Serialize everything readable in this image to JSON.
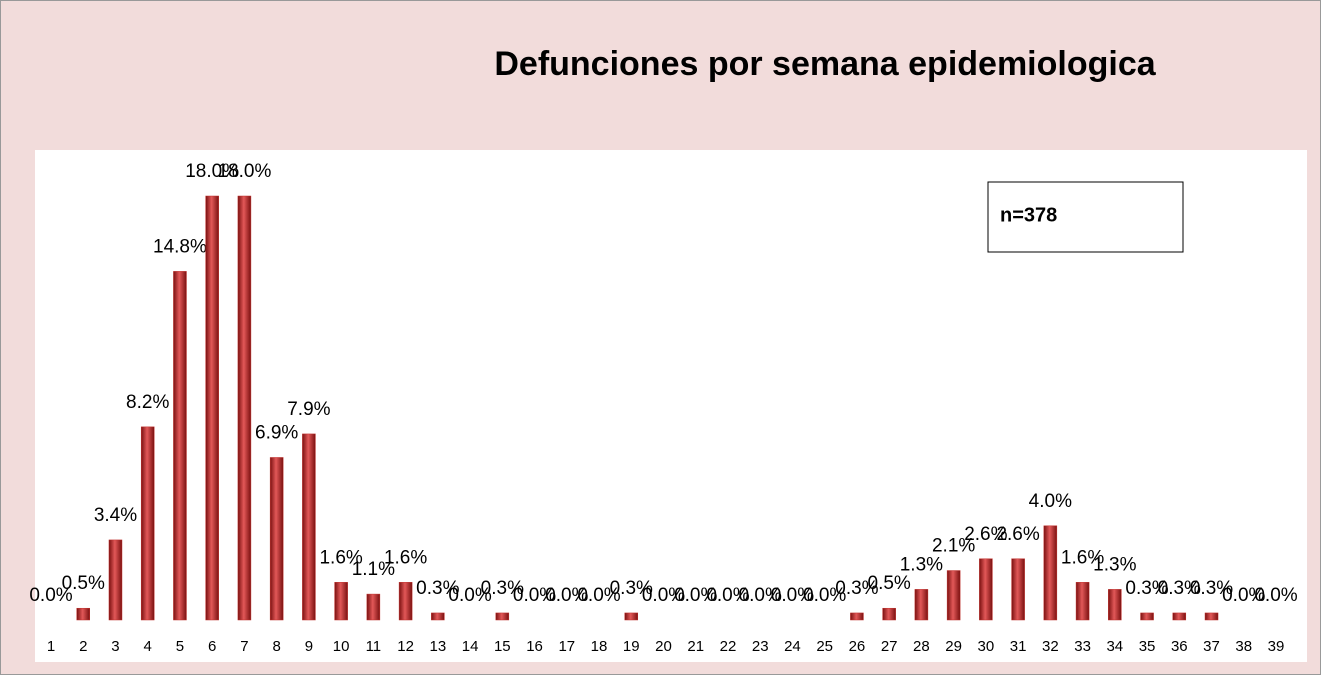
{
  "chart_data": {
    "type": "bar",
    "title": "Defunciones por semana epidemiologica",
    "annotation": "n=378",
    "categories": [
      "1",
      "2",
      "3",
      "4",
      "5",
      "6",
      "7",
      "8",
      "9",
      "10",
      "11",
      "12",
      "13",
      "14",
      "15",
      "16",
      "17",
      "18",
      "19",
      "20",
      "21",
      "22",
      "23",
      "24",
      "25",
      "26",
      "27",
      "28",
      "29",
      "30",
      "31",
      "32",
      "33",
      "34",
      "35",
      "36",
      "37",
      "38",
      "39"
    ],
    "values": [
      0.0,
      0.5,
      3.4,
      8.2,
      14.8,
      18.0,
      18.0,
      6.9,
      7.9,
      1.6,
      1.1,
      1.6,
      0.3,
      0.0,
      0.3,
      0.0,
      0.0,
      0.0,
      0.3,
      0.0,
      0.0,
      0.0,
      0.0,
      0.0,
      0.0,
      0.3,
      0.5,
      1.3,
      2.1,
      2.6,
      2.6,
      4.0,
      1.6,
      1.3,
      0.3,
      0.3,
      0.3,
      0.0,
      0.0
    ],
    "value_labels": [
      "0.0%",
      "0.5%",
      "3.4%",
      "8.2%",
      "14.8%",
      "18.0%",
      "18.0%",
      "6.9%",
      "7.9%",
      "1.6%",
      "1.1%",
      "1.6%",
      "0.3%",
      "0.0%",
      "0.3%",
      "0.0%",
      "0.0%",
      "0.0%",
      "0.3%",
      "0.0%",
      "0.0%",
      "0.0%",
      "0.0%",
      "0.0%",
      "0.0%",
      "0.3%",
      "0.5%",
      "1.3%",
      "2.1%",
      "2.6%",
      "2.6%",
      "4.0%",
      "1.6%",
      "1.3%",
      "0.3%",
      "0.3%",
      "0.3%",
      "0.0%",
      "0.0%"
    ],
    "color": "#c0302c"
  }
}
